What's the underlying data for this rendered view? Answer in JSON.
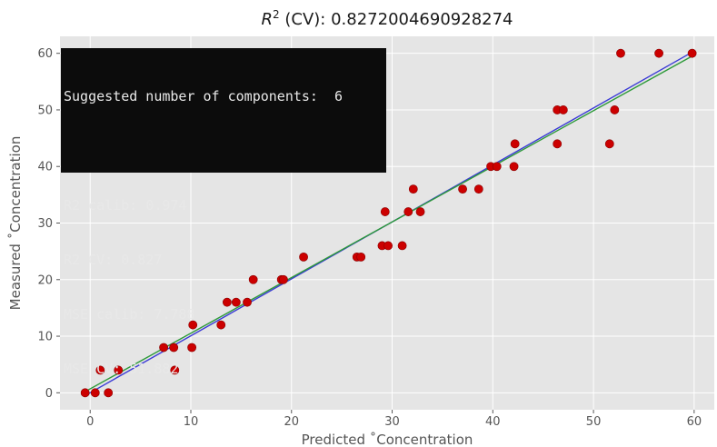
{
  "chart_data": {
    "type": "scatter",
    "title_prefix": "R",
    "title_sup": "2",
    "title_suffix": " (CV): 0.8272004690928274",
    "xlabel": "Predicted ˚Concentration",
    "ylabel": "Measured ˚Concentration",
    "xlim": [
      -3,
      62
    ],
    "ylim": [
      -3,
      63
    ],
    "xticks": [
      0,
      10,
      20,
      30,
      40,
      50,
      60
    ],
    "yticks": [
      0,
      10,
      20,
      30,
      40,
      50,
      60
    ],
    "grid": true,
    "points": [
      [
        -0.5,
        0
      ],
      [
        0.5,
        0
      ],
      [
        1.8,
        0
      ],
      [
        1.0,
        4
      ],
      [
        2.8,
        4
      ],
      [
        7.3,
        8
      ],
      [
        8.3,
        8
      ],
      [
        8.4,
        4
      ],
      [
        10.1,
        8
      ],
      [
        10.2,
        12
      ],
      [
        13.0,
        12
      ],
      [
        13.6,
        16
      ],
      [
        14.5,
        16
      ],
      [
        15.6,
        16
      ],
      [
        16.2,
        20
      ],
      [
        19.0,
        20
      ],
      [
        19.2,
        20
      ],
      [
        21.2,
        24
      ],
      [
        26.5,
        24
      ],
      [
        26.9,
        24
      ],
      [
        29.0,
        26
      ],
      [
        29.6,
        26
      ],
      [
        29.3,
        32
      ],
      [
        31.0,
        26
      ],
      [
        31.6,
        32
      ],
      [
        32.1,
        36
      ],
      [
        32.8,
        32
      ],
      [
        37.0,
        36
      ],
      [
        38.6,
        36
      ],
      [
        39.8,
        40
      ],
      [
        40.4,
        40
      ],
      [
        42.1,
        40
      ],
      [
        42.2,
        44
      ],
      [
        46.4,
        50
      ],
      [
        46.4,
        44
      ],
      [
        47.0,
        50
      ],
      [
        51.6,
        44
      ],
      [
        52.1,
        50
      ],
      [
        52.7,
        60
      ],
      [
        56.5,
        60
      ],
      [
        59.8,
        60
      ]
    ],
    "regression_line": {
      "x": [
        -0.5,
        59.8
      ],
      "y": [
        -0.5,
        60.2
      ],
      "color": "#3b3bd6"
    },
    "fit_line": {
      "x": [
        -0.5,
        59.8
      ],
      "y": [
        0.2,
        59.5
      ],
      "color": "#2e9a3a"
    },
    "marker_color": "#cc0000",
    "background_color": "#e5e5e5",
    "grid_color": "#ffffff"
  },
  "info_box": {
    "lines": [
      "Suggested number of components:  6",
      "",
      "R2 calib: 0.974",
      "R2 CV: 0.827",
      "MSE calib: 7.788",
      "MSE CV: 51.882"
    ]
  }
}
